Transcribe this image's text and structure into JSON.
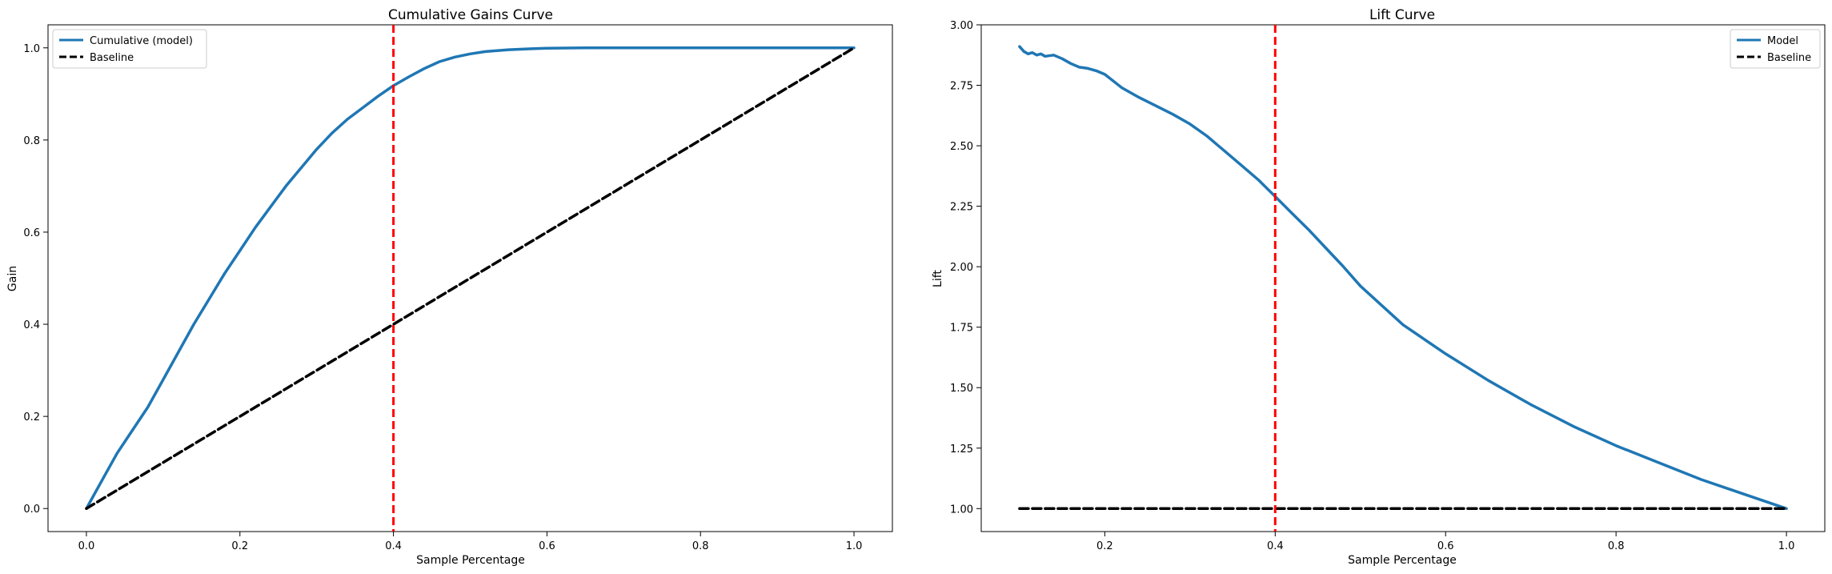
{
  "colors": {
    "model": "#1f77b4",
    "baseline": "#000000",
    "marker": "#ff0000"
  },
  "chart_data": [
    {
      "type": "line",
      "title": "Cumulative Gains Curve",
      "xlabel": "Sample Percentage",
      "ylabel": "Gain",
      "xlim": [
        -0.05,
        1.05
      ],
      "ylim": [
        -0.05,
        1.05
      ],
      "xticks": [
        "0.0",
        "0.2",
        "0.4",
        "0.6",
        "0.8",
        "1.0"
      ],
      "yticks": [
        "0.0",
        "0.2",
        "0.4",
        "0.6",
        "0.8",
        "1.0"
      ],
      "grid": false,
      "legend_position": "upper-left",
      "vline_x": 0.4,
      "series": [
        {
          "name": "Cumulative (model)",
          "style": "solid",
          "x": [
            0,
            0.01,
            0.02,
            0.04,
            0.06,
            0.08,
            0.1,
            0.12,
            0.14,
            0.16,
            0.18,
            0.2,
            0.22,
            0.24,
            0.26,
            0.28,
            0.3,
            0.32,
            0.34,
            0.36,
            0.38,
            0.4,
            0.42,
            0.44,
            0.46,
            0.48,
            0.5,
            0.52,
            0.55,
            0.58,
            0.6,
            0.65,
            0.7,
            0.8,
            0.9,
            1.0
          ],
          "y": [
            0,
            0.03,
            0.06,
            0.12,
            0.17,
            0.22,
            0.28,
            0.34,
            0.4,
            0.455,
            0.51,
            0.56,
            0.61,
            0.655,
            0.7,
            0.74,
            0.78,
            0.815,
            0.845,
            0.87,
            0.895,
            0.918,
            0.937,
            0.955,
            0.97,
            0.98,
            0.987,
            0.992,
            0.996,
            0.998,
            0.999,
            1.0,
            1.0,
            1.0,
            1.0,
            1.0
          ]
        },
        {
          "name": "Baseline",
          "style": "dashed",
          "x": [
            0,
            1
          ],
          "y": [
            0,
            1
          ]
        }
      ]
    },
    {
      "type": "line",
      "title": "Lift Curve",
      "xlabel": "Sample Percentage",
      "ylabel": "Lift",
      "xlim": [
        0.055,
        1.045
      ],
      "ylim": [
        0.905,
        3.0
      ],
      "xticks": [
        "0.2",
        "0.4",
        "0.6",
        "0.8",
        "1.0"
      ],
      "yticks": [
        "1.00",
        "1.25",
        "1.50",
        "1.75",
        "2.00",
        "2.25",
        "2.50",
        "2.75",
        "3.00"
      ],
      "grid": false,
      "legend_position": "upper-right",
      "vline_x": 0.4,
      "series": [
        {
          "name": "Model",
          "style": "solid",
          "x": [
            0.1,
            0.105,
            0.11,
            0.115,
            0.12,
            0.125,
            0.13,
            0.14,
            0.15,
            0.16,
            0.17,
            0.18,
            0.19,
            0.2,
            0.22,
            0.24,
            0.26,
            0.28,
            0.3,
            0.32,
            0.34,
            0.36,
            0.38,
            0.4,
            0.42,
            0.44,
            0.46,
            0.48,
            0.5,
            0.55,
            0.6,
            0.65,
            0.7,
            0.75,
            0.8,
            0.85,
            0.9,
            0.95,
            1.0
          ],
          "y": [
            2.91,
            2.89,
            2.88,
            2.885,
            2.875,
            2.88,
            2.87,
            2.875,
            2.86,
            2.84,
            2.825,
            2.82,
            2.81,
            2.795,
            2.74,
            2.7,
            2.665,
            2.63,
            2.59,
            2.54,
            2.48,
            2.42,
            2.36,
            2.29,
            2.22,
            2.15,
            2.075,
            2.0,
            1.92,
            1.76,
            1.64,
            1.53,
            1.43,
            1.34,
            1.26,
            1.19,
            1.12,
            1.06,
            1.0
          ]
        },
        {
          "name": "Baseline",
          "style": "dashed",
          "x": [
            0.1,
            1.0
          ],
          "y": [
            1.0,
            1.0
          ]
        }
      ]
    }
  ]
}
